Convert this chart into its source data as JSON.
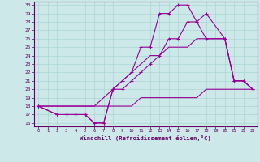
{
  "xlabel": "Windchill (Refroidissement éolien,°C)",
  "line_color": "#990099",
  "bg_color": "#cce8e8",
  "grid_color": "#aad4d4",
  "axis_color": "#660066",
  "xlim": [
    -0.5,
    23.5
  ],
  "ylim": [
    15.6,
    30.4
  ],
  "xticks": [
    0,
    1,
    2,
    3,
    4,
    5,
    6,
    7,
    8,
    9,
    10,
    11,
    12,
    13,
    14,
    15,
    16,
    17,
    18,
    19,
    20,
    21,
    22,
    23
  ],
  "yticks": [
    16,
    17,
    18,
    19,
    20,
    21,
    22,
    23,
    24,
    25,
    26,
    27,
    28,
    29,
    30
  ],
  "lines": [
    {
      "x": [
        0,
        1,
        2,
        3,
        4,
        5,
        6,
        7,
        8,
        9,
        10,
        11,
        12,
        13,
        14,
        15,
        16,
        17,
        18,
        19,
        20,
        21,
        22,
        23
      ],
      "y": [
        18,
        18,
        18,
        18,
        18,
        18,
        18,
        18,
        18,
        18,
        18,
        19,
        19,
        19,
        19,
        19,
        19,
        19,
        20,
        20,
        20,
        20,
        20,
        20
      ],
      "marker": null
    },
    {
      "x": [
        0,
        1,
        2,
        3,
        4,
        5,
        6,
        7,
        8,
        9,
        10,
        11,
        12,
        13,
        14,
        15,
        16,
        17,
        18,
        19,
        20,
        21,
        22,
        23
      ],
      "y": [
        18,
        18,
        18,
        18,
        18,
        18,
        18,
        19,
        20,
        21,
        22,
        23,
        24,
        24,
        25,
        25,
        25,
        26,
        26,
        26,
        26,
        21,
        21,
        20
      ],
      "marker": null
    },
    {
      "x": [
        0,
        2,
        3,
        4,
        5,
        6,
        7,
        8,
        9,
        10,
        11,
        12,
        13,
        14,
        15,
        16,
        17,
        18,
        20,
        21,
        22,
        23
      ],
      "y": [
        18,
        17,
        17,
        17,
        17,
        16,
        16,
        20,
        20,
        21,
        22,
        23,
        24,
        26,
        26,
        28,
        28,
        26,
        26,
        21,
        21,
        20
      ],
      "marker": "+"
    },
    {
      "x": [
        0,
        2,
        3,
        4,
        5,
        6,
        7,
        8,
        9,
        10,
        11,
        12,
        13,
        14,
        15,
        16,
        17,
        18,
        20,
        21,
        22,
        23
      ],
      "y": [
        18,
        17,
        17,
        17,
        17,
        16,
        16,
        20,
        21,
        22,
        25,
        25,
        29,
        29,
        30,
        30,
        28,
        29,
        26,
        21,
        21,
        20
      ],
      "marker": "+"
    }
  ]
}
